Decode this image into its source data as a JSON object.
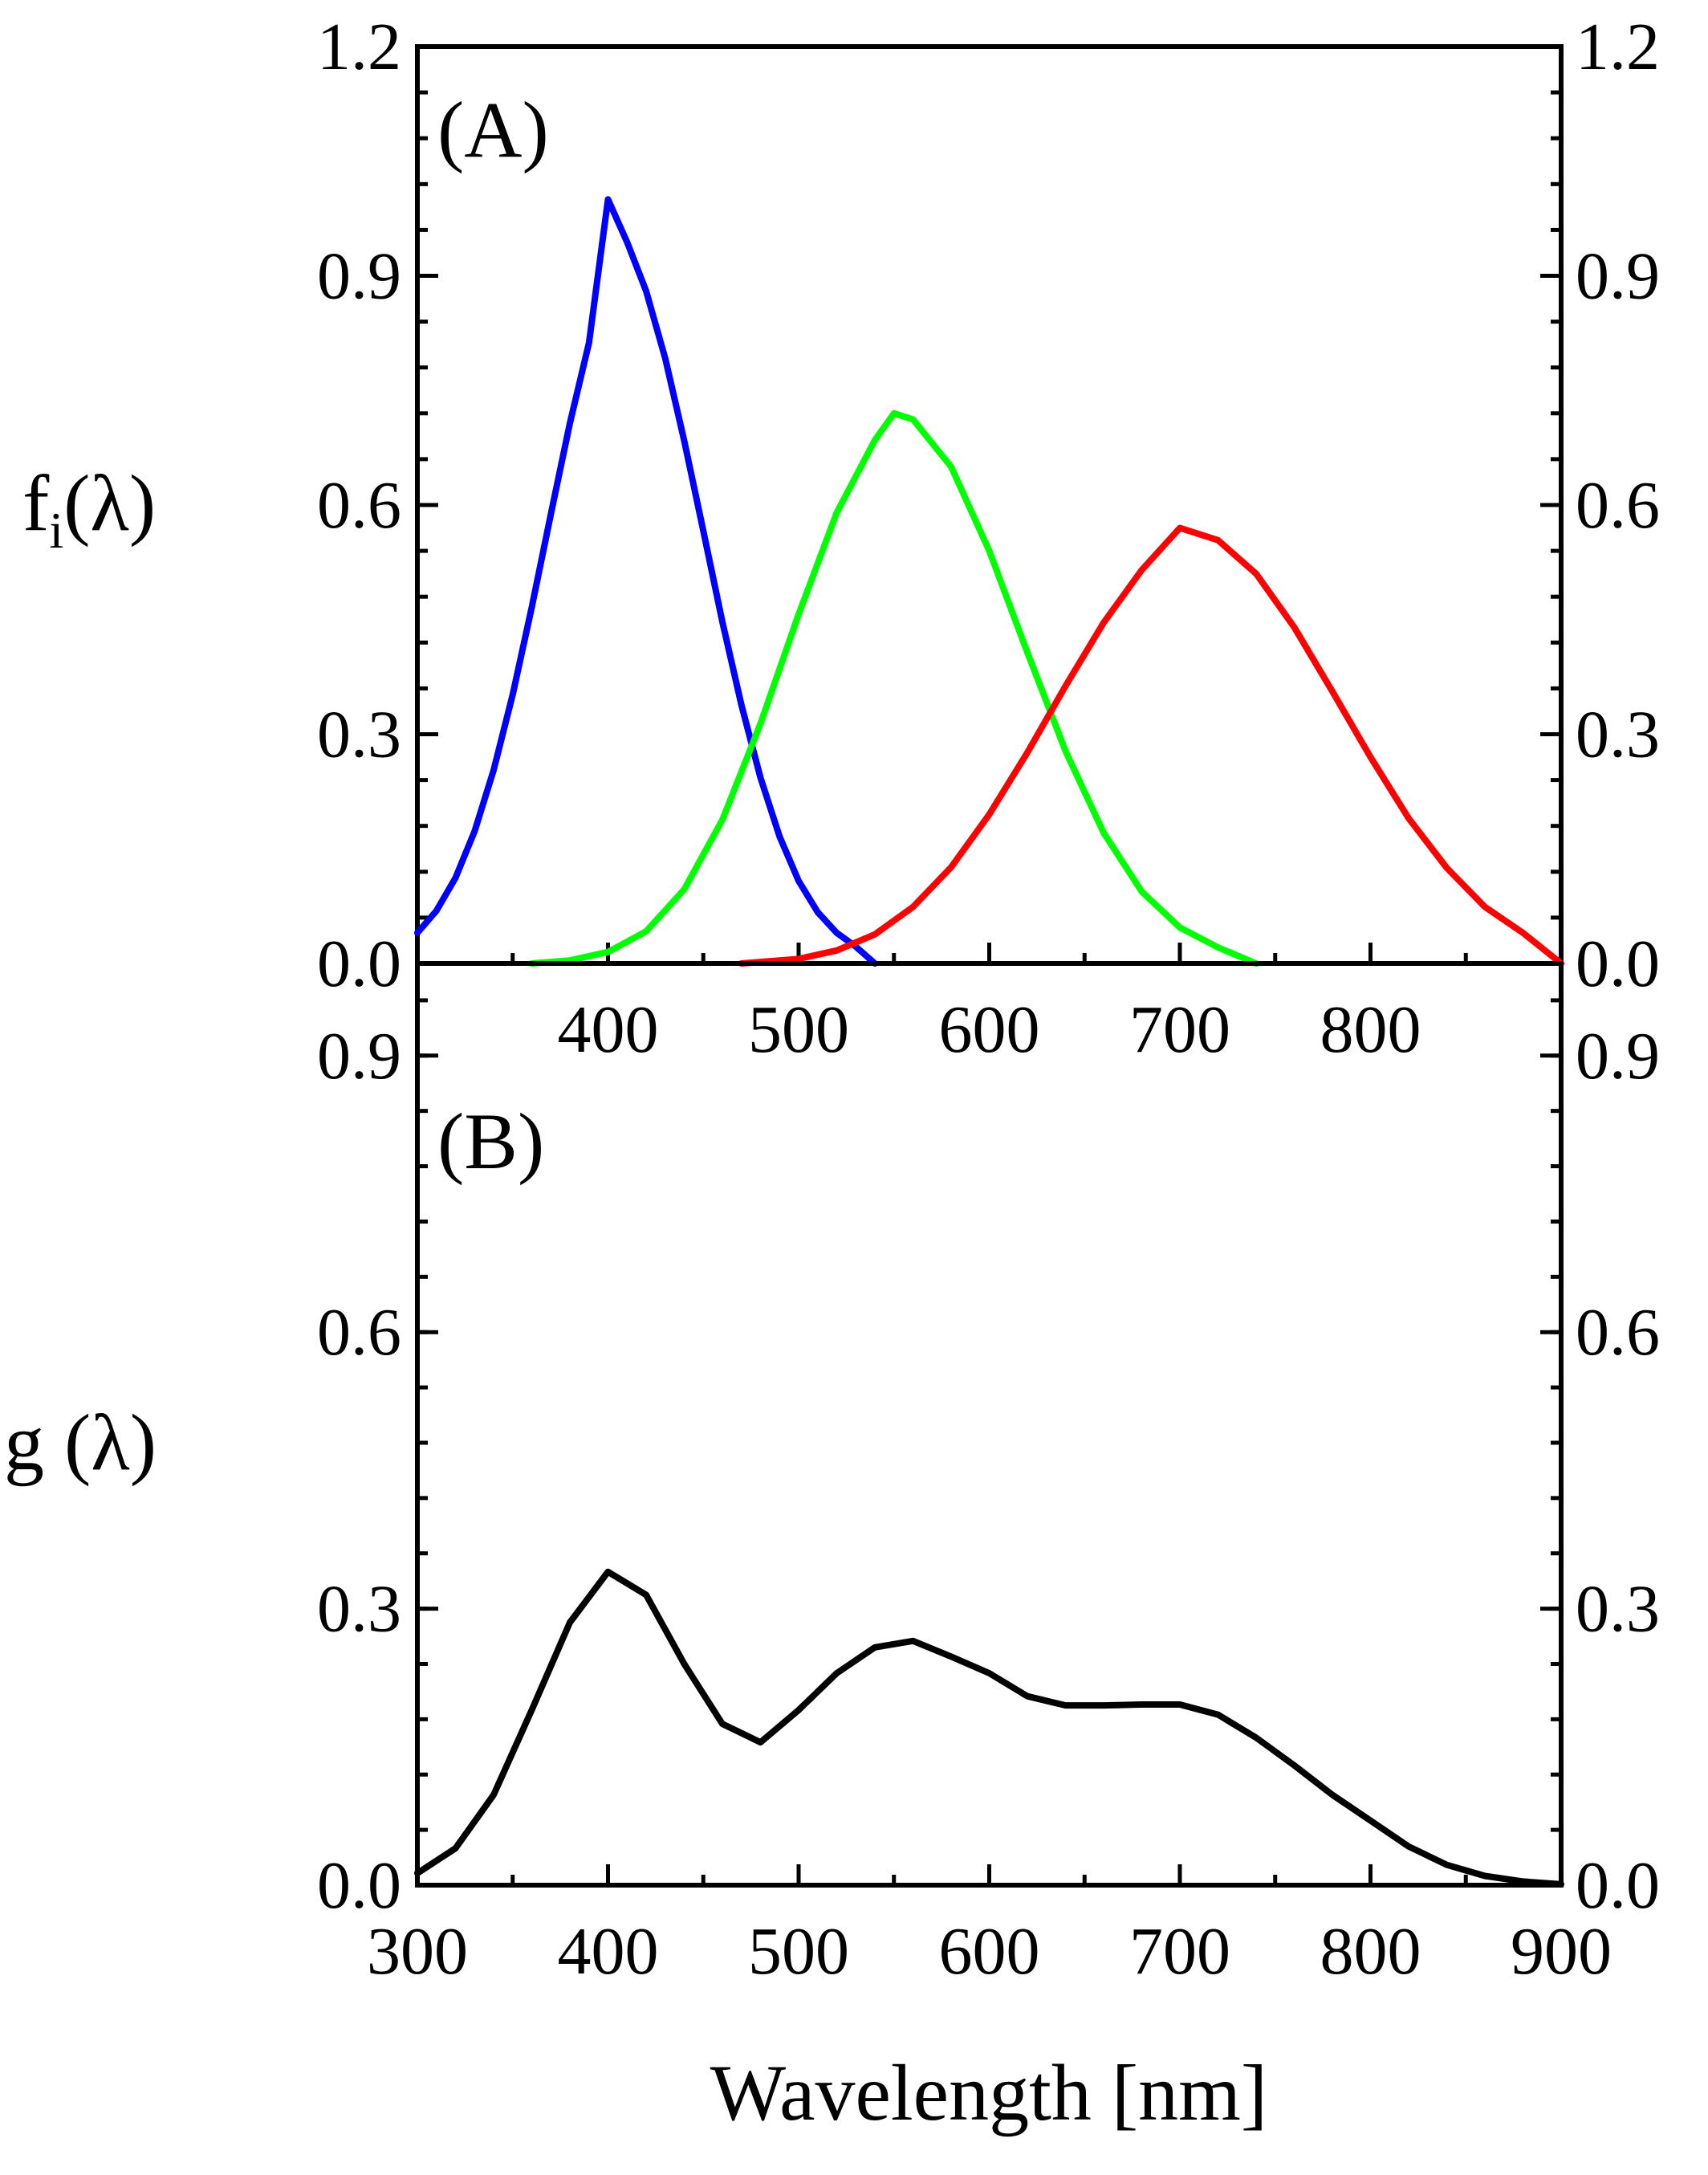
{
  "chart_data": [
    {
      "panel": "(A)",
      "type": "line",
      "ylabel_main": "f",
      "ylabel_sub": "i",
      "ylabel_tail": "(λ)",
      "xlabel": "",
      "xlim": [
        300,
        900
      ],
      "ylim": [
        0.0,
        1.2
      ],
      "x_ticks": [
        400,
        500,
        600,
        700,
        800
      ],
      "y_ticks": [
        "0.0",
        "0.3",
        "0.6",
        "0.9",
        "1.2"
      ],
      "y_tick_values": [
        0.0,
        0.3,
        0.6,
        0.9,
        1.2
      ],
      "right_y_ticks": [
        "0.0",
        "0.3",
        "0.6",
        "0.9",
        "1.2"
      ],
      "grid": false,
      "series": [
        {
          "color": "#0000ff",
          "x": [
            300,
            310,
            320,
            330,
            340,
            350,
            360,
            370,
            380,
            390,
            400,
            410,
            420,
            430,
            440,
            450,
            460,
            470,
            480,
            490,
            500,
            510,
            520,
            530,
            540
          ],
          "y": [
            0.04,
            0.069,
            0.112,
            0.173,
            0.253,
            0.352,
            0.466,
            0.588,
            0.707,
            0.812,
            1.0,
            0.944,
            0.88,
            0.792,
            0.684,
            0.566,
            0.447,
            0.338,
            0.243,
            0.166,
            0.108,
            0.067,
            0.04,
            0.022,
            0.0
          ]
        },
        {
          "color": "#00ff00",
          "x": [
            360,
            380,
            400,
            420,
            440,
            460,
            480,
            500,
            520,
            540,
            550,
            560,
            580,
            600,
            620,
            640,
            660,
            680,
            700,
            720,
            740
          ],
          "y": [
            0.0,
            0.004,
            0.015,
            0.042,
            0.097,
            0.188,
            0.314,
            0.457,
            0.59,
            0.685,
            0.72,
            0.712,
            0.65,
            0.54,
            0.407,
            0.278,
            0.171,
            0.094,
            0.047,
            0.021,
            0.0
          ]
        },
        {
          "color": "#ff0000",
          "x": [
            470,
            500,
            520,
            540,
            560,
            580,
            600,
            620,
            640,
            660,
            680,
            700,
            720,
            740,
            760,
            780,
            800,
            820,
            840,
            860,
            880,
            900
          ],
          "y": [
            0.0,
            0.006,
            0.017,
            0.038,
            0.074,
            0.126,
            0.195,
            0.276,
            0.363,
            0.446,
            0.515,
            0.57,
            0.554,
            0.51,
            0.44,
            0.356,
            0.27,
            0.19,
            0.125,
            0.074,
            0.04,
            0.0
          ]
        }
      ]
    },
    {
      "panel": "(B)",
      "type": "line",
      "ylabel": "g (λ)",
      "xlabel": "Wavelength [nm]",
      "xlim": [
        300,
        900
      ],
      "ylim": [
        0.0,
        1.0
      ],
      "x_ticks": [
        300,
        400,
        500,
        600,
        700,
        800,
        900
      ],
      "y_ticks": [
        "0.0",
        "0.3",
        "0.6",
        "0.9"
      ],
      "y_tick_values": [
        0.0,
        0.3,
        0.6,
        0.9
      ],
      "right_y_ticks": [
        "0.0",
        "0.3",
        "0.6",
        "0.9"
      ],
      "grid": false,
      "series": [
        {
          "color": "#000000",
          "x": [
            300,
            320,
            340,
            360,
            380,
            400,
            420,
            440,
            460,
            480,
            500,
            520,
            540,
            560,
            580,
            600,
            620,
            640,
            660,
            680,
            700,
            720,
            740,
            760,
            780,
            800,
            820,
            840,
            860,
            880,
            900
          ],
          "y": [
            0.013,
            0.04,
            0.098,
            0.19,
            0.285,
            0.34,
            0.315,
            0.24,
            0.175,
            0.155,
            0.19,
            0.23,
            0.258,
            0.265,
            0.248,
            0.23,
            0.205,
            0.195,
            0.195,
            0.196,
            0.196,
            0.185,
            0.16,
            0.13,
            0.098,
            0.07,
            0.042,
            0.022,
            0.01,
            0.004,
            0.001
          ]
        }
      ]
    }
  ]
}
